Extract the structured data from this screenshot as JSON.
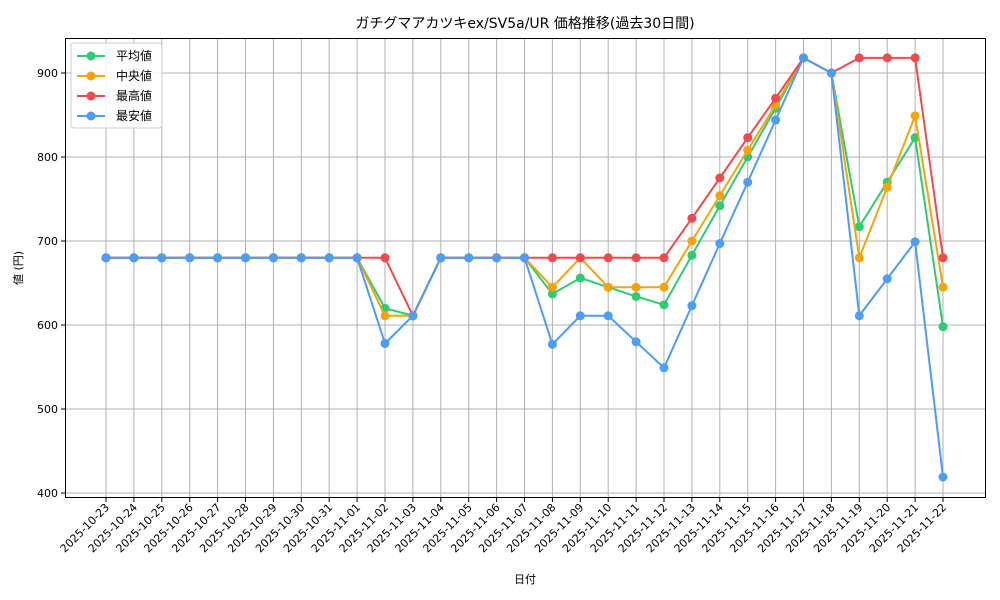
{
  "chart_data": {
    "type": "line",
    "title": "ガチグマアカツキex/SV5a/UR 価格推移(過去30日間)",
    "xlabel": "日付",
    "ylabel": "値 (円)",
    "ylim": [
      395,
      942
    ],
    "yticks": [
      400,
      500,
      600,
      700,
      800,
      900
    ],
    "grid": true,
    "legend_position": "upper left",
    "categories": [
      "2025-10-23",
      "2025-10-24",
      "2025-10-25",
      "2025-10-26",
      "2025-10-27",
      "2025-10-28",
      "2025-10-29",
      "2025-10-30",
      "2025-10-31",
      "2025-11-01",
      "2025-11-02",
      "2025-11-03",
      "2025-11-04",
      "2025-11-05",
      "2025-11-06",
      "2025-11-07",
      "2025-11-08",
      "2025-11-09",
      "2025-11-10",
      "2025-11-11",
      "2025-11-12",
      "2025-11-13",
      "2025-11-14",
      "2025-11-15",
      "2025-11-16",
      "2025-11-17",
      "2025-11-18",
      "2025-11-19",
      "2025-11-20",
      "2025-11-21",
      "2025-11-22"
    ],
    "series": [
      {
        "name": "平均値",
        "color": "#2ecc71",
        "values": [
          680,
          680,
          680,
          680,
          680,
          680,
          680,
          680,
          680,
          680,
          620,
          611,
          680,
          680,
          680,
          680,
          637,
          656,
          645,
          634,
          624,
          683,
          742,
          800,
          858,
          918,
          900,
          717,
          770,
          823,
          598
        ]
      },
      {
        "name": "中央値",
        "color": "#f5a30a",
        "values": [
          680,
          680,
          680,
          680,
          680,
          680,
          680,
          680,
          680,
          680,
          611,
          611,
          680,
          680,
          680,
          680,
          645,
          680,
          645,
          645,
          645,
          700,
          754,
          808,
          862,
          918,
          900,
          680,
          764,
          849,
          645
        ]
      },
      {
        "name": "最高値",
        "color": "#f0494f",
        "values": [
          680,
          680,
          680,
          680,
          680,
          680,
          680,
          680,
          680,
          680,
          680,
          611,
          680,
          680,
          680,
          680,
          680,
          680,
          680,
          680,
          680,
          727,
          775,
          823,
          870,
          918,
          900,
          918,
          918,
          918,
          680
        ]
      },
      {
        "name": "最安値",
        "color": "#4d9cf5",
        "values": [
          680,
          680,
          680,
          680,
          680,
          680,
          680,
          680,
          680,
          680,
          578,
          611,
          680,
          680,
          680,
          680,
          577,
          611,
          611,
          580,
          549,
          623,
          697,
          770,
          844,
          918,
          900,
          611,
          655,
          699,
          419
        ]
      }
    ]
  }
}
